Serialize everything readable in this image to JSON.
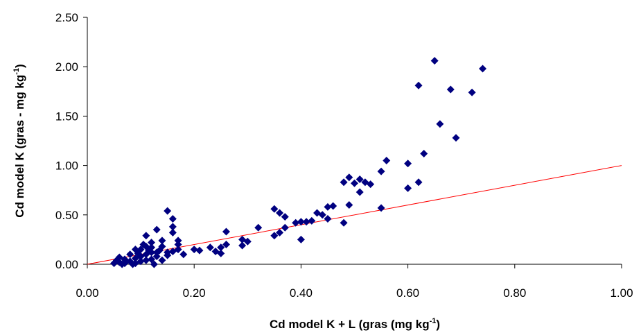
{
  "chart_data": {
    "type": "scatter",
    "x_label": [
      "Cd model K + L (gras (mg kg",
      "-1",
      ")"
    ],
    "y_label": [
      "Cd model K (gras - mg kg",
      "-1",
      ")"
    ],
    "series": [
      {
        "color": "#000080",
        "x": [
          0.65,
          0.62,
          0.68,
          0.72,
          0.74,
          0.66,
          0.69,
          0.63,
          0.56,
          0.6,
          0.55,
          0.62,
          0.6,
          0.49,
          0.48,
          0.5,
          0.51,
          0.52,
          0.53,
          0.51,
          0.49,
          0.55,
          0.46,
          0.45,
          0.48,
          0.43,
          0.44,
          0.45,
          0.4,
          0.41,
          0.42,
          0.39,
          0.4,
          0.37,
          0.35,
          0.36,
          0.37,
          0.35,
          0.36,
          0.32,
          0.3,
          0.29,
          0.29,
          0.26,
          0.26,
          0.25,
          0.24,
          0.25,
          0.23,
          0.21,
          0.2,
          0.18,
          0.17,
          0.17,
          0.16,
          0.15,
          0.16,
          0.16,
          0.17,
          0.16,
          0.15,
          0.14,
          0.14,
          0.13,
          0.13,
          0.13,
          0.12,
          0.12,
          0.12,
          0.12,
          0.11,
          0.11,
          0.11,
          0.11,
          0.1,
          0.1,
          0.1,
          0.09,
          0.09,
          0.09,
          0.08,
          0.08,
          0.07,
          0.07,
          0.06,
          0.06,
          0.05,
          0.055,
          0.065,
          0.085,
          0.095,
          0.105,
          0.115,
          0.125,
          0.14,
          0.15,
          0.135
        ],
        "values": [
          2.06,
          1.81,
          1.77,
          1.74,
          1.98,
          1.42,
          1.28,
          1.12,
          1.05,
          1.02,
          0.94,
          0.83,
          0.77,
          0.88,
          0.83,
          0.82,
          0.86,
          0.83,
          0.81,
          0.73,
          0.6,
          0.57,
          0.59,
          0.58,
          0.42,
          0.52,
          0.5,
          0.46,
          0.43,
          0.43,
          0.44,
          0.42,
          0.25,
          0.48,
          0.56,
          0.52,
          0.37,
          0.29,
          0.32,
          0.37,
          0.23,
          0.25,
          0.19,
          0.33,
          0.2,
          0.17,
          0.13,
          0.11,
          0.17,
          0.14,
          0.15,
          0.1,
          0.15,
          0.2,
          0.46,
          0.54,
          0.38,
          0.32,
          0.24,
          0.13,
          0.12,
          0.24,
          0.18,
          0.35,
          0.12,
          0.08,
          0.22,
          0.17,
          0.12,
          0.05,
          0.29,
          0.18,
          0.1,
          0.04,
          0.15,
          0.08,
          0.03,
          0.15,
          0.06,
          0.01,
          0.1,
          0.03,
          0.05,
          0.01,
          0.07,
          0.02,
          0.01,
          0.04,
          0.0,
          0.0,
          0.11,
          0.2,
          0.14,
          0.0,
          0.04,
          0.09,
          0.14
        ]
      }
    ],
    "reference_line": {
      "x": [
        0,
        1
      ],
      "values": [
        0,
        1
      ],
      "color": "#ff0000"
    },
    "xlim": [
      0,
      1
    ],
    "ylim": [
      0,
      2.5
    ],
    "xticks": [
      {
        "value": 0,
        "label": "0.00"
      },
      {
        "value": 0.2,
        "label": "0.20"
      },
      {
        "value": 0.4,
        "label": "0.40"
      },
      {
        "value": 0.6,
        "label": "0.60"
      },
      {
        "value": 0.8,
        "label": "0.80"
      },
      {
        "value": 1,
        "label": "1.00"
      }
    ],
    "yticks": [
      {
        "value": 0,
        "label": "0.00"
      },
      {
        "value": 0.5,
        "label": "0.50"
      },
      {
        "value": 1,
        "label": "1.00"
      },
      {
        "value": 1.5,
        "label": "1.50"
      },
      {
        "value": 2,
        "label": "2.00"
      },
      {
        "value": 2.5,
        "label": "2.50"
      }
    ]
  }
}
